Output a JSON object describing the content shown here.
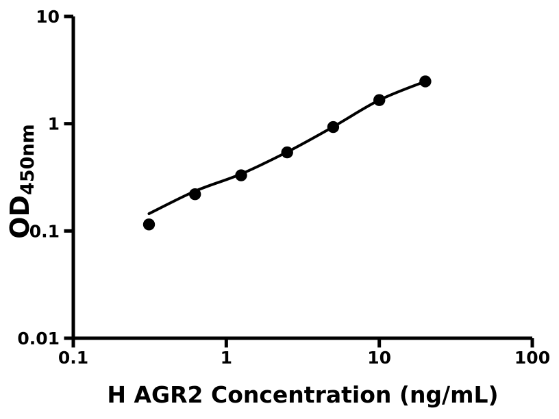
{
  "colors": {
    "foreground": "#000000",
    "background": "#ffffff"
  },
  "chart_data": {
    "type": "scatter",
    "title": "",
    "xlabel": "H AGR2 Concentration (ng/mL)",
    "ylabel": "OD450nm",
    "ylabel_main": "OD",
    "ylabel_sub": "450nm",
    "x_scale": "log10",
    "y_scale": "log10",
    "xlim": [
      0.1,
      100
    ],
    "ylim": [
      0.01,
      10
    ],
    "x_tick_values": [
      0.1,
      1,
      10,
      100
    ],
    "x_tick_labels": [
      "0.1",
      "1",
      "10",
      "100"
    ],
    "y_tick_values": [
      0.01,
      0.1,
      1,
      10
    ],
    "y_tick_labels": [
      "0.01",
      "0.1",
      "1",
      "10"
    ],
    "grid": false,
    "legend": false,
    "series": [
      {
        "name": "standard-points",
        "type": "scatter",
        "marker": "filled-circle",
        "color": "#000000",
        "x": [
          0.3125,
          0.625,
          1.25,
          2.5,
          5,
          10,
          20
        ],
        "y": [
          0.115,
          0.22,
          0.33,
          0.54,
          0.93,
          1.66,
          2.48
        ]
      },
      {
        "name": "fit-curve",
        "type": "line",
        "color": "#000000",
        "x": [
          0.3125,
          0.625,
          1.25,
          2.5,
          5,
          10,
          20
        ],
        "y": [
          0.145,
          0.235,
          0.34,
          0.545,
          0.935,
          1.66,
          2.48
        ]
      }
    ]
  }
}
